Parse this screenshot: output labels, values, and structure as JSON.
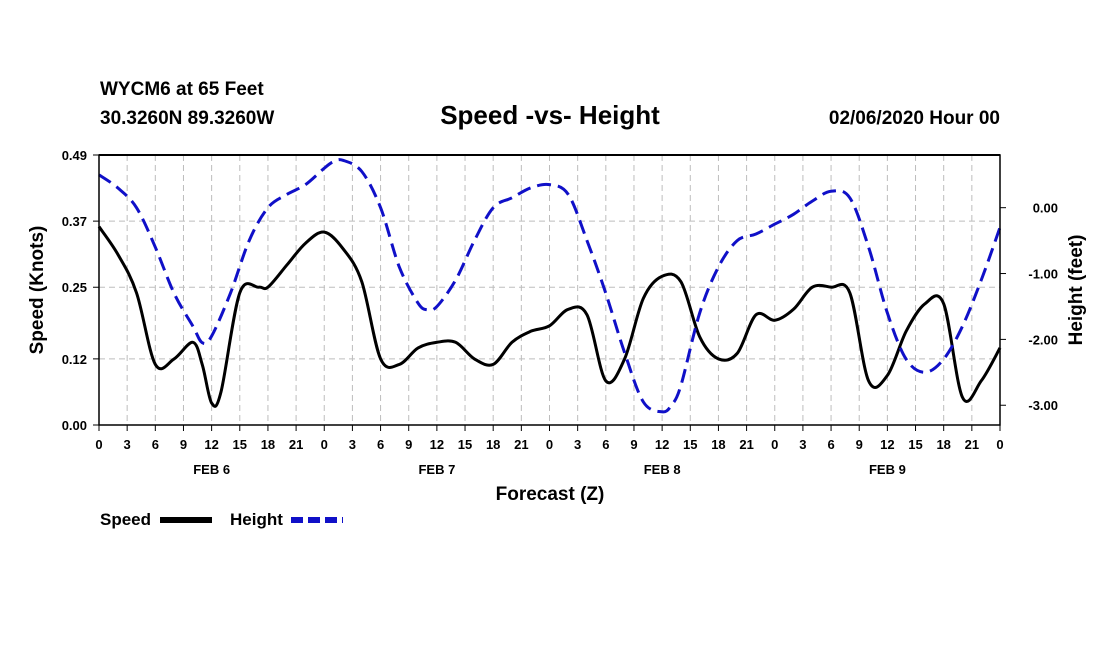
{
  "header": {
    "station": "WYCM6 at 65 Feet",
    "coords": "30.3260N 89.3260W",
    "title": "Speed -vs- Height",
    "datetime": "02/06/2020 Hour 00"
  },
  "colors": {
    "speed": "#000000",
    "height": "#1010c8"
  },
  "chart_data": {
    "type": "line",
    "title": "Speed -vs- Height",
    "xlabel": "Forecast (Z)",
    "ylabel": "Speed (Knots)",
    "y2label": "Height (feet)",
    "xlim": [
      0,
      96
    ],
    "ylim": [
      0.0,
      0.49
    ],
    "y2lim": [
      -3.3,
      0.8
    ],
    "x_ticks": [
      0,
      3,
      6,
      9,
      12,
      15,
      18,
      21,
      24,
      27,
      30,
      33,
      36,
      39,
      42,
      45,
      48,
      51,
      54,
      57,
      60,
      63,
      66,
      69,
      72,
      75,
      78,
      81,
      84,
      87,
      90,
      93,
      96
    ],
    "x_tick_labels": [
      "0",
      "3",
      "6",
      "9",
      "12",
      "15",
      "18",
      "21",
      "0",
      "3",
      "6",
      "9",
      "12",
      "15",
      "18",
      "21",
      "0",
      "3",
      "6",
      "9",
      "12",
      "15",
      "18",
      "21",
      "0",
      "3",
      "6",
      "9",
      "12",
      "15",
      "18",
      "21",
      "0"
    ],
    "day_labels": [
      {
        "label": "FEB 6",
        "x": 12
      },
      {
        "label": "FEB 7",
        "x": 36
      },
      {
        "label": "FEB 8",
        "x": 60
      },
      {
        "label": "FEB 9",
        "x": 84
      }
    ],
    "y_ticks": [
      0.0,
      0.12,
      0.25,
      0.37,
      0.49
    ],
    "y_tick_labels": [
      "0.00",
      "0.12",
      "0.25",
      "0.37",
      "0.49"
    ],
    "y2_ticks": [
      0.0,
      -1.0,
      -2.0,
      -3.0
    ],
    "y2_tick_labels": [
      "0.00",
      "-1.00",
      "-2.00",
      "-3.00"
    ],
    "grid": true,
    "legend": [
      {
        "name": "Speed",
        "style": "solid"
      },
      {
        "name": "Height",
        "style": "dashed"
      }
    ],
    "series": [
      {
        "name": "Speed",
        "axis": "left",
        "x": [
          0,
          2,
          4,
          6,
          8,
          10,
          11,
          12,
          13,
          15,
          17,
          18,
          20,
          22,
          24,
          26,
          28,
          30,
          32,
          34,
          36,
          38,
          40,
          42,
          44,
          46,
          48,
          50,
          52,
          54,
          56,
          58,
          60,
          62,
          64,
          66,
          68,
          70,
          72,
          74,
          76,
          78,
          80,
          82,
          84,
          86,
          88,
          90,
          92,
          94,
          96
        ],
        "values": [
          0.36,
          0.31,
          0.24,
          0.11,
          0.12,
          0.15,
          0.11,
          0.04,
          0.06,
          0.24,
          0.25,
          0.25,
          0.29,
          0.33,
          0.35,
          0.32,
          0.26,
          0.12,
          0.11,
          0.14,
          0.15,
          0.15,
          0.12,
          0.11,
          0.15,
          0.17,
          0.18,
          0.21,
          0.2,
          0.08,
          0.12,
          0.23,
          0.27,
          0.26,
          0.16,
          0.12,
          0.13,
          0.2,
          0.19,
          0.21,
          0.25,
          0.25,
          0.24,
          0.08,
          0.09,
          0.17,
          0.22,
          0.22,
          0.05,
          0.08,
          0.14
        ]
      },
      {
        "name": "Height",
        "axis": "right",
        "x": [
          0,
          2,
          4,
          6,
          8,
          10,
          11,
          12,
          14,
          16,
          18,
          20,
          22,
          24,
          25,
          26,
          28,
          30,
          32,
          34,
          35,
          36,
          38,
          40,
          42,
          44,
          46,
          48,
          50,
          52,
          54,
          56,
          58,
          60,
          61,
          62,
          64,
          66,
          68,
          70,
          72,
          74,
          76,
          78,
          80,
          82,
          84,
          86,
          88,
          90,
          92,
          94,
          96
        ],
        "values": [
          0.5,
          0.3,
          0.0,
          -0.6,
          -1.3,
          -1.8,
          -2.05,
          -1.95,
          -1.3,
          -0.5,
          0.0,
          0.2,
          0.35,
          0.6,
          0.7,
          0.72,
          0.55,
          0.0,
          -0.9,
          -1.45,
          -1.55,
          -1.5,
          -1.1,
          -0.5,
          0.0,
          0.15,
          0.3,
          0.35,
          0.2,
          -0.5,
          -1.3,
          -2.2,
          -2.95,
          -3.1,
          -3.0,
          -2.7,
          -1.6,
          -0.9,
          -0.5,
          -0.4,
          -0.25,
          -0.1,
          0.1,
          0.25,
          0.15,
          -0.6,
          -1.6,
          -2.3,
          -2.5,
          -2.3,
          -1.8,
          -1.1,
          -0.3
        ]
      }
    ]
  }
}
